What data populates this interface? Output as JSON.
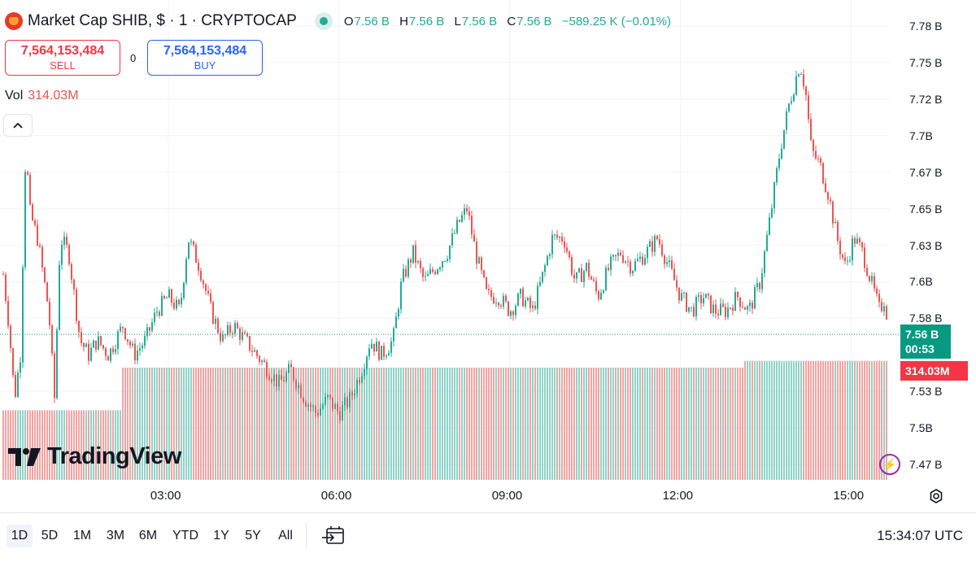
{
  "header": {
    "title": "Market Cap SHIB, $ · 1 · CRYPTOCAP",
    "ohlc": [
      {
        "label": "O",
        "value": "7.56 B"
      },
      {
        "label": "H",
        "value": "7.56 B"
      },
      {
        "label": "L",
        "value": "7.56 B"
      },
      {
        "label": "C",
        "value": "7.56 B"
      }
    ],
    "change": "−589.25 K (−0.01%)"
  },
  "trade": {
    "sell_price": "7,564,153,484",
    "sell_label": "SELL",
    "spread": "0",
    "buy_price": "7,564,153,484",
    "buy_label": "BUY"
  },
  "volume": {
    "label": "Vol",
    "value": "314.03M"
  },
  "price_tag": {
    "price": "7.56 B",
    "countdown": "00:53"
  },
  "volume_tag": "314.03M",
  "logo_text": "TradingView",
  "bottom_bar": {
    "ranges": [
      "1D",
      "5D",
      "1M",
      "3M",
      "6M",
      "YTD",
      "1Y",
      "5Y",
      "All"
    ],
    "active_range": "1D",
    "clock": "15:34:07 UTC"
  },
  "icons": [
    "shib-coin-icon",
    "market-status-icon",
    "collapse-chevron-icon",
    "tradingview-logo-icon",
    "lightning-icon",
    "settings-icon",
    "compare-dates-icon"
  ],
  "colors": {
    "up": "#22ab94",
    "down": "#ef5350",
    "up_volume": "#8fd3c8",
    "down_volume": "#f4a3a2",
    "sell": "#f23645",
    "buy": "#2962ff",
    "price_tag": "#089981"
  },
  "chart_data": {
    "type": "candlestick",
    "interval": "1 minute",
    "y_axis": {
      "ticks": [
        "7.78 B",
        "7.75 B",
        "7.72 B",
        "7.7B",
        "7.67 B",
        "7.65 B",
        "7.63 B",
        "7.6B",
        "7.58 B",
        "7.53 B",
        "7.5B",
        "7.47 B"
      ],
      "tick_values": [
        7.775,
        7.75,
        7.725,
        7.7,
        7.675,
        7.65,
        7.625,
        7.6,
        7.575,
        7.525,
        7.5,
        7.475
      ],
      "range": [
        7.465,
        7.785
      ]
    },
    "x_axis": {
      "ticks": [
        "03:00",
        "06:00",
        "09:00",
        "12:00",
        "15:00"
      ],
      "tick_hours": [
        3,
        6,
        9,
        12,
        15
      ],
      "range_hours": [
        0.1,
        15.65
      ]
    },
    "last_price": 7.564,
    "close_path": [
      [
        0.1,
        7.605
      ],
      [
        0.2,
        7.57
      ],
      [
        0.3,
        7.52
      ],
      [
        0.4,
        7.55
      ],
      [
        0.5,
        7.7
      ],
      [
        0.55,
        7.65
      ],
      [
        0.7,
        7.63
      ],
      [
        0.9,
        7.58
      ],
      [
        1.0,
        7.52
      ],
      [
        1.1,
        7.63
      ],
      [
        1.25,
        7.62
      ],
      [
        1.45,
        7.56
      ],
      [
        1.6,
        7.55
      ],
      [
        1.75,
        7.56
      ],
      [
        1.95,
        7.55
      ],
      [
        2.2,
        7.57
      ],
      [
        2.4,
        7.55
      ],
      [
        2.6,
        7.56
      ],
      [
        2.8,
        7.58
      ],
      [
        3.0,
        7.59
      ],
      [
        3.2,
        7.58
      ],
      [
        3.35,
        7.63
      ],
      [
        3.55,
        7.61
      ],
      [
        3.75,
        7.58
      ],
      [
        3.95,
        7.56
      ],
      [
        4.15,
        7.57
      ],
      [
        4.35,
        7.56
      ],
      [
        4.55,
        7.55
      ],
      [
        4.75,
        7.54
      ],
      [
        4.95,
        7.53
      ],
      [
        5.15,
        7.54
      ],
      [
        5.4,
        7.52
      ],
      [
        5.6,
        7.51
      ],
      [
        5.8,
        7.52
      ],
      [
        6.0,
        7.51
      ],
      [
        6.2,
        7.52
      ],
      [
        6.4,
        7.54
      ],
      [
        6.55,
        7.56
      ],
      [
        6.75,
        7.55
      ],
      [
        6.95,
        7.56
      ],
      [
        7.1,
        7.6
      ],
      [
        7.3,
        7.62
      ],
      [
        7.5,
        7.6
      ],
      [
        7.7,
        7.61
      ],
      [
        7.9,
        7.62
      ],
      [
        8.1,
        7.64
      ],
      [
        8.25,
        7.65
      ],
      [
        8.4,
        7.62
      ],
      [
        8.6,
        7.59
      ],
      [
        8.8,
        7.59
      ],
      [
        9.0,
        7.58
      ],
      [
        9.2,
        7.59
      ],
      [
        9.4,
        7.58
      ],
      [
        9.55,
        7.6
      ],
      [
        9.75,
        7.63
      ],
      [
        9.95,
        7.63
      ],
      [
        10.15,
        7.6
      ],
      [
        10.35,
        7.61
      ],
      [
        10.55,
        7.59
      ],
      [
        10.75,
        7.61
      ],
      [
        10.95,
        7.62
      ],
      [
        11.15,
        7.61
      ],
      [
        11.4,
        7.62
      ],
      [
        11.6,
        7.63
      ],
      [
        11.8,
        7.61
      ],
      [
        12.0,
        7.59
      ],
      [
        12.2,
        7.58
      ],
      [
        12.4,
        7.59
      ],
      [
        12.6,
        7.58
      ],
      [
        12.8,
        7.58
      ],
      [
        13.0,
        7.59
      ],
      [
        13.2,
        7.58
      ],
      [
        13.4,
        7.6
      ],
      [
        13.6,
        7.65
      ],
      [
        13.75,
        7.69
      ],
      [
        13.9,
        7.72
      ],
      [
        14.1,
        7.75
      ],
      [
        14.2,
        7.73
      ],
      [
        14.3,
        7.69
      ],
      [
        14.45,
        7.68
      ],
      [
        14.6,
        7.66
      ],
      [
        14.75,
        7.63
      ],
      [
        14.9,
        7.61
      ],
      [
        15.05,
        7.63
      ],
      [
        15.2,
        7.62
      ],
      [
        15.35,
        7.6
      ],
      [
        15.5,
        7.58
      ],
      [
        15.6,
        7.59
      ],
      [
        15.65,
        7.564
      ]
    ],
    "volume_levels": [
      {
        "from_hour": 0.1,
        "to_hour": 2.2,
        "relative_height": 0.62
      },
      {
        "from_hour": 2.2,
        "to_hour": 13.1,
        "relative_height": 1.0
      },
      {
        "from_hour": 13.1,
        "to_hour": 15.65,
        "relative_height": 1.06
      }
    ]
  }
}
